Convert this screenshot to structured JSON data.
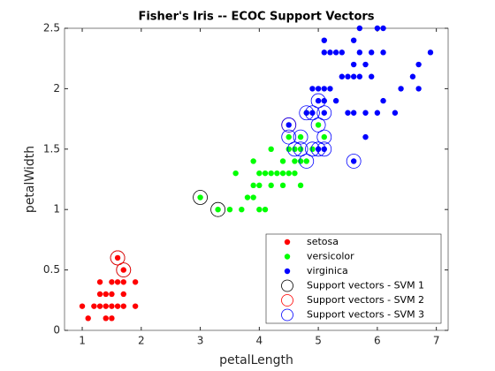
{
  "chart_data": {
    "type": "scatter",
    "title": "Fisher's Iris -- ECOC Support Vectors",
    "xlabel": "petalLength",
    "ylabel": "petalWidth",
    "xlim": [
      0.7,
      7.2
    ],
    "ylim": [
      0,
      2.5
    ],
    "xticks": [
      1,
      2,
      3,
      4,
      5,
      6,
      7
    ],
    "yticks": [
      0,
      0.5,
      1,
      1.5,
      2,
      2.5
    ],
    "legend_location": "southeast",
    "series": [
      {
        "name": "setosa",
        "color": "#ff0000",
        "marker": "dot",
        "x": [
          1.4,
          1.3,
          1.5,
          1.7,
          1.4,
          1.5,
          1.6,
          1.4,
          1.1,
          1.2,
          1.5,
          1.3,
          1.7,
          1.5,
          1.7,
          1.0,
          1.7,
          1.9,
          1.6,
          1.3,
          1.6,
          1.9
        ],
        "y": [
          0.2,
          0.2,
          0.2,
          0.4,
          0.3,
          0.1,
          0.2,
          0.1,
          0.1,
          0.2,
          0.4,
          0.4,
          0.3,
          0.3,
          0.2,
          0.2,
          0.5,
          0.2,
          0.4,
          0.3,
          0.6,
          0.4
        ]
      },
      {
        "name": "versicolor",
        "color": "#00ff00",
        "marker": "dot",
        "x": [
          4.7,
          4.5,
          4.9,
          4.0,
          4.6,
          4.5,
          4.7,
          3.3,
          4.6,
          3.9,
          3.5,
          4.2,
          4.0,
          3.6,
          4.4,
          4.1,
          3.9,
          4.8,
          4.7,
          4.3,
          4.8,
          5.0,
          3.8,
          3.7,
          3.9,
          5.1,
          4.5,
          4.7,
          4.4,
          4.1,
          4.4,
          4.6,
          4.0,
          4.2,
          4.2,
          3.0
        ],
        "y": [
          1.4,
          1.5,
          1.5,
          1.3,
          1.5,
          1.3,
          1.6,
          1.0,
          1.3,
          1.4,
          1.0,
          1.5,
          1.0,
          1.3,
          1.4,
          1.0,
          1.1,
          1.8,
          1.2,
          1.3,
          1.4,
          1.7,
          1.1,
          1.0,
          1.2,
          1.6,
          1.6,
          1.5,
          1.3,
          1.3,
          1.2,
          1.4,
          1.2,
          1.3,
          1.2,
          1.1
        ]
      },
      {
        "name": "virginica",
        "color": "#0000ff",
        "marker": "dot",
        "x": [
          6.0,
          5.1,
          5.9,
          5.6,
          5.8,
          6.6,
          4.5,
          6.3,
          5.8,
          6.1,
          5.1,
          5.3,
          5.5,
          5.0,
          5.1,
          5.3,
          5.5,
          6.7,
          6.9,
          5.0,
          5.7,
          4.9,
          6.7,
          4.9,
          5.7,
          6.0,
          4.8,
          5.6,
          5.8,
          6.1,
          6.4,
          5.6,
          5.1,
          5.6,
          6.1,
          5.6,
          5.4,
          5.1,
          5.9,
          5.7,
          5.2,
          5.0,
          5.2,
          5.4,
          5.1
        ],
        "y": [
          2.5,
          1.9,
          2.1,
          1.8,
          2.2,
          2.1,
          1.7,
          1.8,
          1.8,
          2.5,
          2.0,
          1.9,
          2.1,
          2.0,
          2.4,
          2.3,
          1.8,
          2.2,
          2.3,
          1.5,
          2.3,
          2.0,
          2.0,
          1.8,
          2.1,
          1.8,
          1.8,
          2.1,
          1.6,
          1.9,
          2.0,
          2.2,
          1.5,
          1.4,
          2.3,
          2.4,
          2.1,
          2.3,
          2.3,
          2.5,
          2.3,
          1.9,
          2.0,
          2.3,
          1.8
        ]
      },
      {
        "name": "Support vectors - SVM 1",
        "color": "#000000",
        "marker": "circle",
        "x": [
          1.6,
          1.7,
          3.0,
          3.3
        ],
        "y": [
          0.6,
          0.5,
          1.1,
          1.0
        ]
      },
      {
        "name": "Support vectors - SVM 2",
        "color": "#ff0000",
        "marker": "circle",
        "x": [
          1.6,
          1.7,
          4.5
        ],
        "y": [
          0.6,
          0.5,
          1.7
        ]
      },
      {
        "name": "Support vectors - SVM 3",
        "color": "#0000ff",
        "marker": "circle",
        "x": [
          4.5,
          4.8,
          4.9,
          5.0,
          4.7,
          4.5,
          5.1,
          4.6,
          4.7,
          4.9,
          5.0,
          5.1,
          4.8,
          5.6,
          5.1,
          5.0
        ],
        "y": [
          1.7,
          1.8,
          1.8,
          1.7,
          1.6,
          1.6,
          1.6,
          1.5,
          1.5,
          1.5,
          1.5,
          1.5,
          1.4,
          1.4,
          1.8,
          1.9
        ]
      }
    ]
  }
}
